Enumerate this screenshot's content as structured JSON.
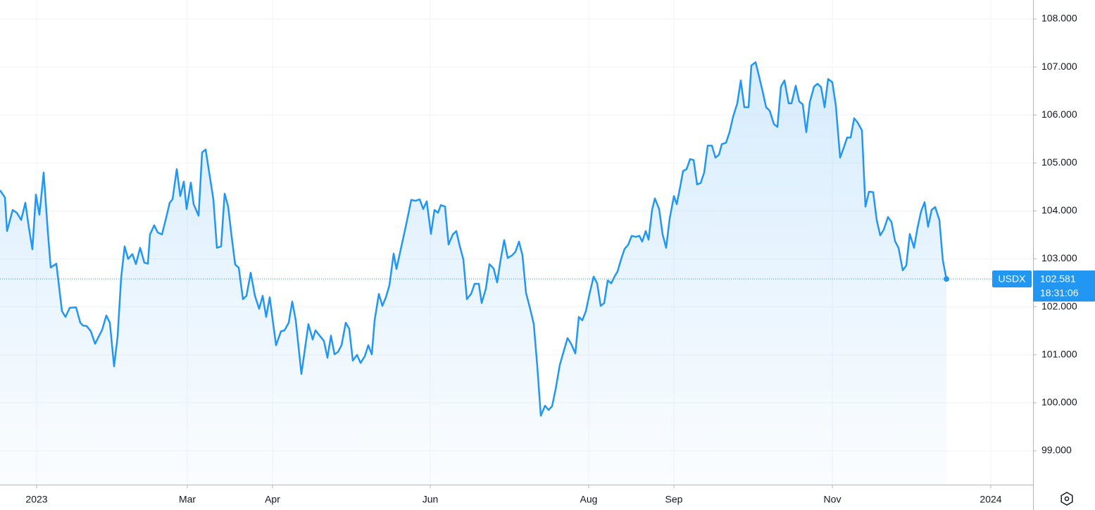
{
  "chart_data": {
    "type": "area",
    "xlim": [
      0,
      293.4
    ],
    "xticks": [
      {
        "value": 10.4,
        "label": "2023"
      },
      {
        "value": 53.2,
        "label": "Mar"
      },
      {
        "value": 77.4,
        "label": "Apr"
      },
      {
        "value": 122.2,
        "label": "Jun"
      },
      {
        "value": 167.2,
        "label": "Aug"
      },
      {
        "value": 191.4,
        "label": "Sep"
      },
      {
        "value": 236.4,
        "label": "Nov"
      },
      {
        "value": 281.4,
        "label": "2024"
      }
    ],
    "ylim": [
      98.294,
      108.396
    ],
    "yticks": [
      {
        "value": 99,
        "label": "99.000"
      },
      {
        "value": 100,
        "label": "100.000"
      },
      {
        "value": 101,
        "label": "101.000"
      },
      {
        "value": 102,
        "label": "102.000"
      },
      {
        "value": 103,
        "label": "103.000"
      },
      {
        "value": 104,
        "label": "104.000"
      },
      {
        "value": 105,
        "label": "105.000"
      },
      {
        "value": 106,
        "label": "106.000"
      },
      {
        "value": 107,
        "label": "107.000"
      },
      {
        "value": 108,
        "label": "108.000"
      }
    ],
    "grid": true,
    "x": [
      0,
      1.4,
      2,
      3.6,
      4.8,
      6,
      7.2,
      8.2,
      9.2,
      10.2,
      11.2,
      12.4,
      13.6,
      14.4,
      16,
      17.6,
      18.6,
      19.8,
      21.6,
      22.8,
      23.6,
      24.6,
      25.8,
      27,
      29,
      30.2,
      31.2,
      32.4,
      33.4,
      34.4,
      35.4,
      36.4,
      37.6,
      38.6,
      39.8,
      41,
      42,
      42.6,
      43.8,
      44.8,
      46,
      47,
      48.2,
      49,
      50.2,
      51.2,
      52.2,
      53,
      54.2,
      55,
      56.4,
      57.4,
      58.4,
      60.6,
      61.6,
      62.8,
      63.8,
      64.8,
      65.8,
      66.8,
      67.8,
      69,
      70,
      71.2,
      72.4,
      73.6,
      74.6,
      75.6,
      76.6,
      78.4,
      79.8,
      80.8,
      82,
      83,
      84,
      85.6,
      87.6,
      88.8,
      89.6,
      91,
      92,
      93,
      94,
      95,
      96,
      97,
      98.2,
      99.2,
      100.2,
      101.4,
      102.4,
      103.6,
      104.6,
      105.6,
      106.4,
      107.6,
      108.6,
      109.6,
      110.6,
      111.8,
      112.6,
      114,
      115.4,
      116.8,
      118,
      119.2,
      120.2,
      121.2,
      122.4,
      123.4,
      124.4,
      125.2,
      126.4,
      127.4,
      128.6,
      129.6,
      130.6,
      131.6,
      132.6,
      133.8,
      134.8,
      136,
      136.8,
      138,
      139,
      140.2,
      141.2,
      142.2,
      143.2,
      144.2,
      145.4,
      146.4,
      147.4,
      148.4,
      149.4,
      150.4,
      151.6,
      152.6,
      153.6,
      154.8,
      155.8,
      156.8,
      157.8,
      159,
      160.2,
      161.2,
      162.2,
      163.4,
      164.4,
      165.4,
      166.4,
      167.4,
      168.6,
      169.6,
      170.6,
      171.6,
      172.6,
      173.6,
      174.6,
      175.4,
      176.4,
      177.4,
      178.4,
      179.4,
      180.6,
      181.6,
      182.4,
      183.4,
      184.2,
      185.2,
      186,
      187.2,
      188.2,
      189.2,
      190.2,
      191.4,
      192.2,
      193.2,
      194,
      195,
      196,
      197,
      198,
      199,
      200,
      201,
      202.2,
      203.2,
      204.2,
      205,
      206.2,
      207.2,
      208.2,
      209.4,
      210.4,
      211.4,
      212.6,
      213.4,
      214.6,
      215.6,
      216.6,
      217.6,
      218.6,
      219.8,
      220.8,
      221.8,
      222.8,
      224,
      224.8,
      226,
      227,
      228,
      229,
      230,
      231.2,
      232.2,
      233.2,
      234.2,
      235.2,
      236.4,
      237.4,
      238.6,
      239.6,
      240.6,
      241.6,
      242.6,
      243.6,
      244.8,
      245.8,
      246.8,
      248,
      249,
      250,
      251,
      252.2,
      253.2,
      254.2,
      255.2,
      256.4,
      257.4,
      258.4,
      259.6,
      260.6,
      261.6,
      262.6,
      263.6,
      264.6,
      265.6,
      266.8,
      267.8,
      268.8
    ],
    "series": [
      {
        "name": "USDX",
        "color": "#2196f3",
        "values": [
          104.43,
          104.28,
          103.58,
          104.02,
          103.96,
          103.81,
          104.17,
          103.65,
          103.2,
          104.34,
          103.92,
          104.8,
          103.55,
          102.82,
          102.9,
          101.91,
          101.79,
          101.98,
          101.99,
          101.67,
          101.61,
          101.6,
          101.49,
          101.23,
          101.52,
          101.82,
          101.67,
          100.76,
          101.38,
          102.6,
          103.26,
          103.0,
          103.1,
          102.89,
          103.23,
          102.92,
          102.9,
          103.51,
          103.7,
          103.55,
          103.51,
          103.8,
          104.17,
          104.24,
          104.87,
          104.31,
          104.61,
          104.04,
          104.59,
          104.14,
          103.9,
          105.22,
          105.28,
          104.24,
          103.23,
          103.26,
          104.36,
          104.09,
          103.46,
          102.88,
          102.82,
          102.16,
          102.23,
          102.71,
          102.23,
          101.96,
          102.23,
          101.79,
          102.2,
          101.2,
          101.49,
          101.51,
          101.67,
          102.11,
          101.72,
          100.6,
          101.64,
          101.32,
          101.51,
          101.38,
          101.29,
          100.94,
          101.4,
          101.01,
          101.06,
          101.2,
          101.67,
          101.54,
          100.88,
          101.0,
          100.83,
          100.97,
          101.2,
          101.01,
          101.72,
          102.27,
          102.02,
          102.2,
          102.45,
          103.11,
          102.79,
          103.26,
          103.73,
          104.23,
          104.21,
          104.24,
          104.04,
          104.2,
          103.52,
          104.02,
          103.96,
          104.12,
          104.09,
          103.3,
          103.51,
          103.58,
          103.26,
          102.99,
          102.16,
          102.27,
          102.48,
          102.48,
          102.08,
          102.38,
          102.89,
          102.8,
          102.51,
          102.99,
          103.39,
          103.02,
          103.07,
          103.15,
          103.36,
          103.07,
          102.29,
          102.01,
          101.64,
          100.76,
          99.73,
          99.94,
          99.85,
          99.93,
          100.28,
          100.79,
          101.1,
          101.35,
          101.23,
          101.03,
          101.79,
          101.72,
          101.91,
          102.26,
          102.63,
          102.49,
          102.02,
          102.08,
          102.55,
          102.49,
          102.64,
          102.74,
          102.99,
          103.21,
          103.29,
          103.48,
          103.46,
          103.48,
          103.36,
          103.58,
          103.4,
          104.02,
          104.26,
          104.04,
          103.51,
          103.23,
          103.84,
          104.31,
          104.14,
          104.51,
          104.83,
          104.87,
          105.08,
          105.06,
          104.55,
          104.58,
          104.8,
          105.36,
          105.36,
          105.11,
          105.17,
          105.39,
          105.42,
          105.64,
          105.96,
          106.24,
          106.72,
          106.16,
          106.16,
          107.03,
          107.1,
          106.8,
          106.49,
          106.16,
          106.09,
          105.81,
          105.75,
          106.59,
          106.72,
          106.24,
          106.24,
          106.61,
          106.28,
          106.22,
          105.64,
          106.27,
          106.59,
          106.65,
          106.58,
          106.16,
          106.75,
          106.68,
          106.19,
          105.11,
          105.31,
          105.53,
          105.53,
          105.93,
          105.84,
          105.68,
          104.09,
          104.4,
          104.39,
          103.81,
          103.49,
          103.61,
          103.87,
          103.77,
          103.37,
          103.23,
          102.76,
          102.86,
          103.52,
          103.23,
          103.65,
          103.99,
          104.18,
          103.67,
          104.02,
          104.08,
          103.81,
          102.96,
          102.581
        ]
      }
    ],
    "last_price": 102.581,
    "countdown": "18:31:06"
  }
}
